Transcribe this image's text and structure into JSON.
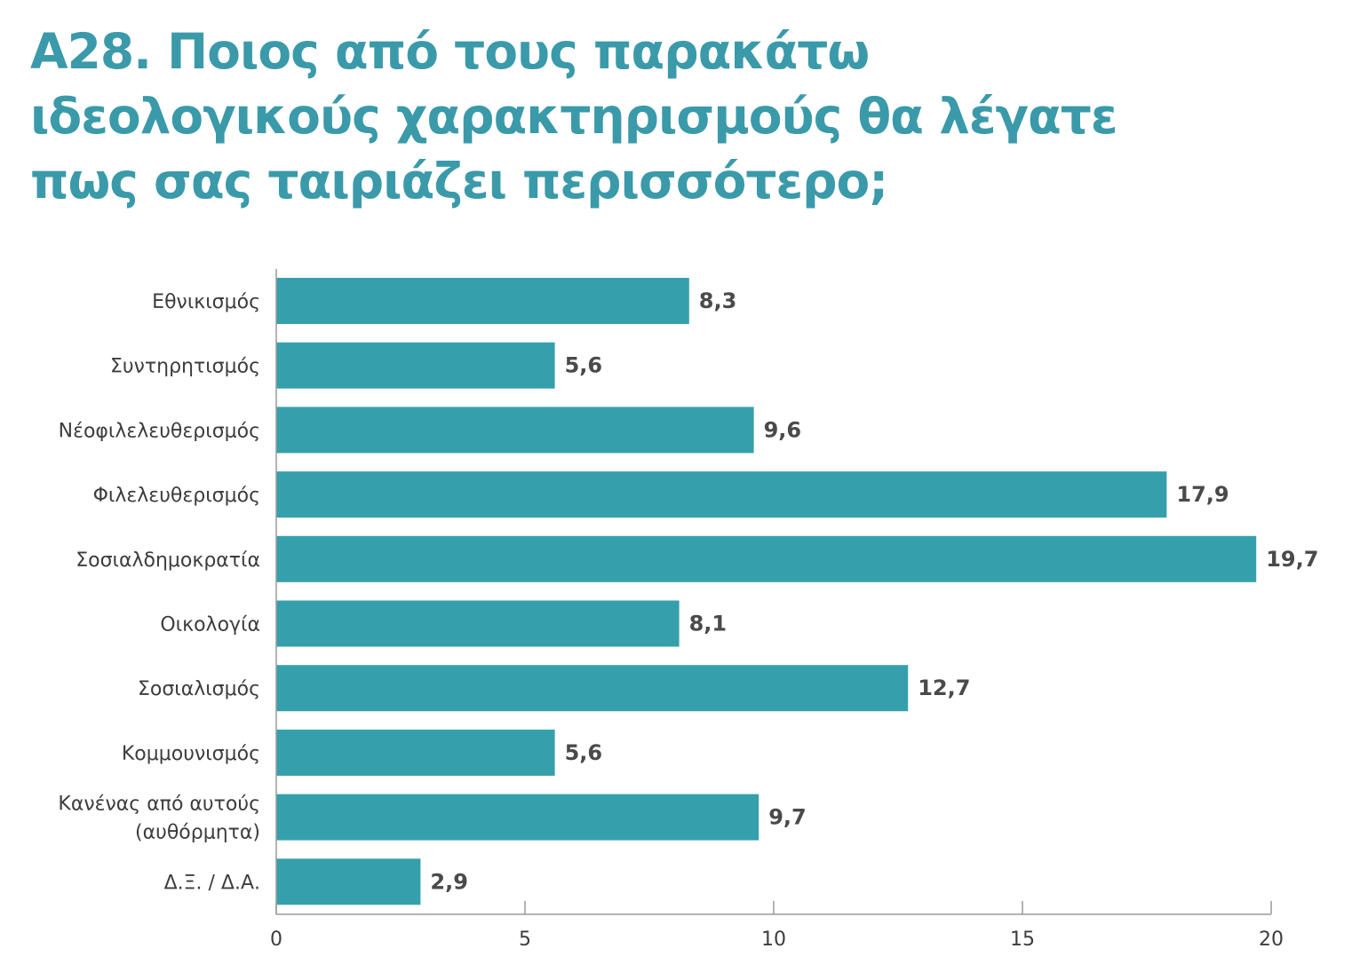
{
  "title_lines": [
    "A28. Ποιος από τους παρακάτω",
    "ιδεολογικούς χαρακτηρισμούς θα λέγατε",
    "πως σας ταιριάζει περισσότερο;"
  ],
  "colors": {
    "title": "#3a9aaa",
    "bar": "#35a0ac",
    "axis": "#9a9a9a",
    "text": "#3d3d3d",
    "value_text": "#4a4a4a"
  },
  "chart_data": {
    "type": "bar",
    "orientation": "horizontal",
    "title": "A28. Ποιος από τους παρακάτω ιδεολογικούς χαρακτηρισμούς θα λέγατε πως σας ταιριάζει περισσότερο;",
    "categories": [
      [
        "Εθνικισμός"
      ],
      [
        "Συντηρητισμός"
      ],
      [
        "Νέοφιλελευθερισμός"
      ],
      [
        "Φιλελευθερισμός"
      ],
      [
        "Σοσιαλδημοκρατία"
      ],
      [
        "Οικολογία"
      ],
      [
        "Σοσιαλισμός"
      ],
      [
        "Κομμουνισμός"
      ],
      [
        "Κανένας από αυτούς",
        "(αυθόρμητα)"
      ],
      [
        "Δ.Ξ. / Δ.Α."
      ]
    ],
    "values": [
      8.3,
      5.6,
      9.6,
      17.9,
      19.7,
      8.1,
      12.7,
      5.6,
      9.7,
      2.9
    ],
    "value_labels": [
      "8,3",
      "5,6",
      "9,6",
      "17,9",
      "19,7",
      "8,1",
      "12,7",
      "5,6",
      "9,7",
      "2,9"
    ],
    "xlim": [
      0,
      20
    ],
    "xticks": [
      0,
      5,
      10,
      15,
      20
    ],
    "xtick_labels": [
      "0",
      "5",
      "10",
      "15",
      "20"
    ],
    "xlabel": "",
    "ylabel": "",
    "grid": false,
    "legend": "none"
  }
}
